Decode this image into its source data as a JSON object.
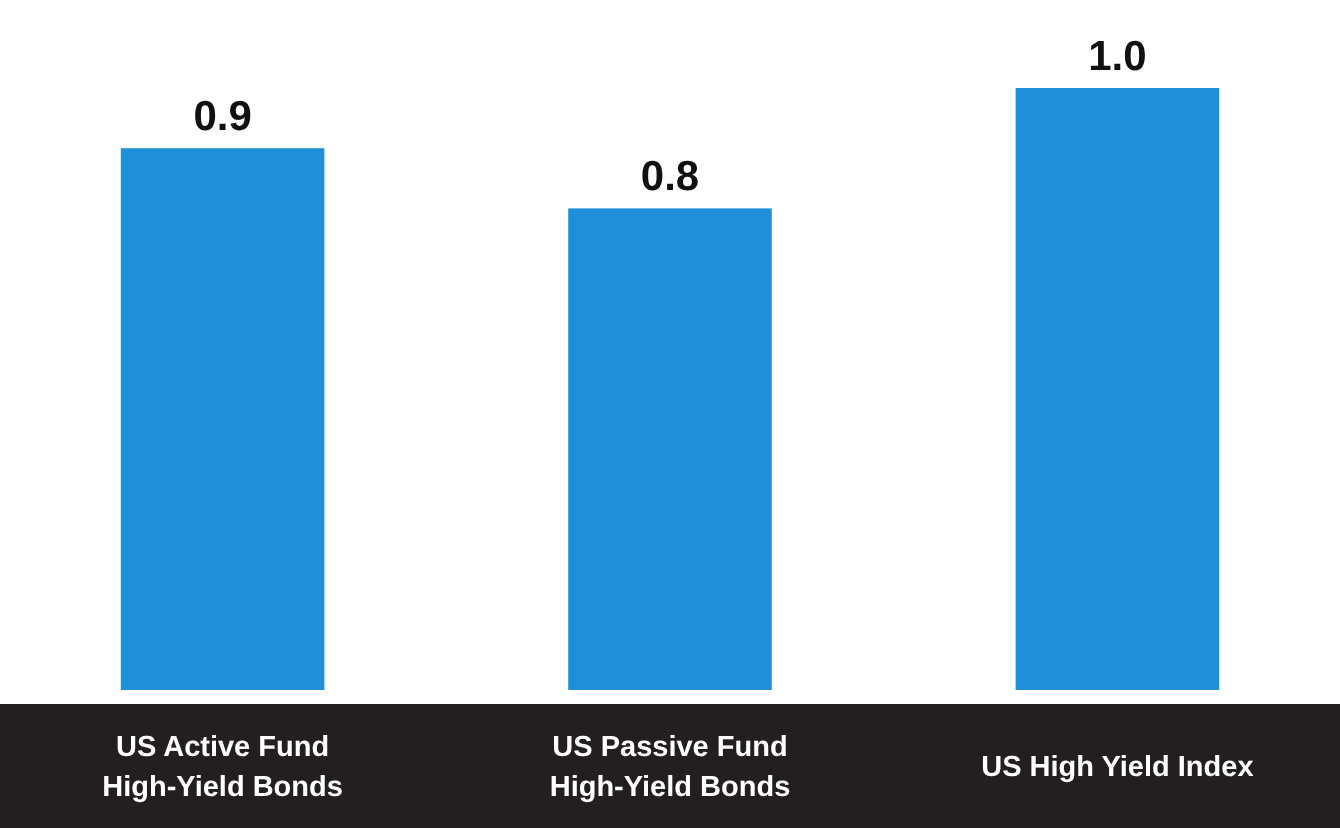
{
  "chart_data": {
    "type": "bar",
    "categories": [
      "US Active Fund\nHigh-Yield Bonds",
      "US Passive Fund\nHigh-Yield Bonds",
      "US High Yield Index"
    ],
    "values": [
      0.9,
      0.8,
      1.0
    ],
    "value_labels": [
      "0.9",
      "0.8",
      "1.0"
    ],
    "color": "#1f8fd9"
  }
}
